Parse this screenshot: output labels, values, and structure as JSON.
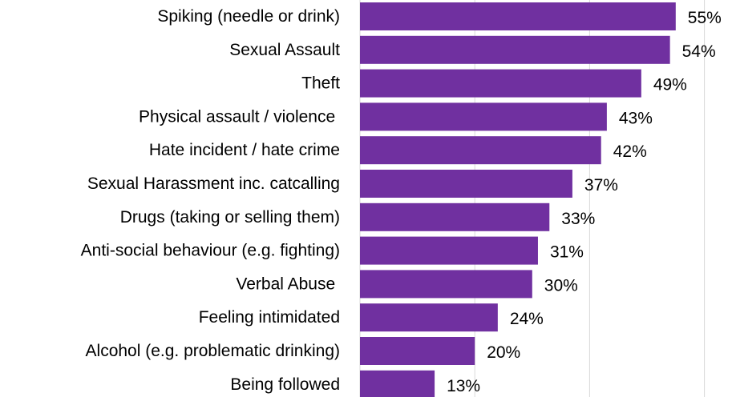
{
  "chart_data": {
    "type": "bar",
    "orientation": "horizontal",
    "categories": [
      "Spiking (needle or drink)",
      "Sexual Assault",
      "Theft",
      "Physical assault / violence ",
      "Hate incident / hate crime",
      "Sexual Harassment inc. catcalling",
      "Drugs (taking or selling them)",
      "Anti-social behaviour (e.g. fighting)",
      "Verbal Abuse ",
      "Feeling intimidated",
      "Alcohol (e.g. problematic drinking)",
      "Being followed"
    ],
    "values": [
      55,
      54,
      49,
      43,
      42,
      37,
      33,
      31,
      30,
      24,
      20,
      13
    ],
    "value_labels": [
      "55%",
      "54%",
      "49%",
      "43%",
      "42%",
      "37%",
      "33%",
      "31%",
      "30%",
      "24%",
      "20%",
      "13%"
    ],
    "xlim": [
      0,
      60
    ],
    "gridlines": [
      20,
      40,
      60
    ],
    "grid": true,
    "bar_color": "#7030a0"
  }
}
